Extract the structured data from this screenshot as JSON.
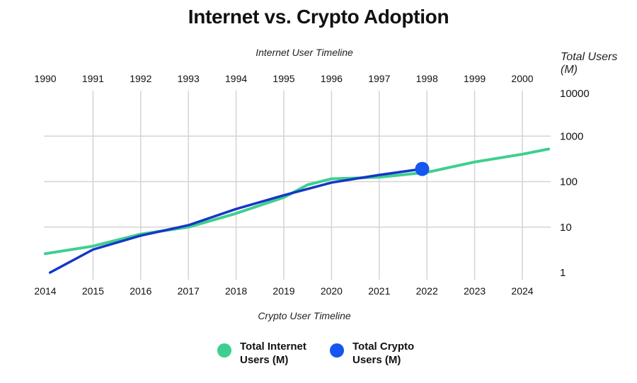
{
  "colors": {
    "internet": "#3ecf8e",
    "crypto": "#1536c8",
    "crypto_marker": "#1556f0",
    "grid": "#d4d4d4",
    "text": "#111111"
  },
  "chart_data": {
    "type": "line",
    "title": "Internet vs. Crypto Adoption",
    "top_axis_label": "Internet User Timeline",
    "bottom_axis_label": "Crypto User Timeline",
    "ylabel": "Total Users (M)",
    "y_scale": "log",
    "ylim": [
      1,
      10000
    ],
    "y_ticks": [
      1,
      10,
      100,
      1000,
      10000
    ],
    "y_tick_labels": [
      "1",
      "10",
      "100",
      "1000",
      "10000"
    ],
    "x_top_ticks": [
      "1990",
      "1991",
      "1992",
      "1993",
      "1994",
      "1995",
      "1996",
      "1997",
      "1998",
      "1999",
      "2000"
    ],
    "x_bottom_ticks": [
      "2014",
      "2015",
      "2016",
      "2017",
      "2018",
      "2019",
      "2020",
      "2021",
      "2022",
      "2023",
      "2024"
    ],
    "grid": true,
    "legend_position": "bottom",
    "series": [
      {
        "name": "Total Internet Users (M)",
        "axis": "top",
        "x": [
          1990.0,
          1991.0,
          1992.0,
          1993.0,
          1994.0,
          1995.0,
          1995.5,
          1996.0,
          1997.0,
          1998.0,
          1999.0,
          2000.0,
          2000.55
        ],
        "y": [
          2.6,
          3.8,
          7,
          10,
          20,
          45,
          85,
          115,
          125,
          160,
          270,
          400,
          520
        ]
      },
      {
        "name": "Total Crypto Users (M)",
        "axis": "bottom",
        "x": [
          2014.1,
          2015.0,
          2016.0,
          2017.0,
          2018.0,
          2019.0,
          2020.0,
          2021.0,
          2021.9
        ],
        "y": [
          1,
          3.2,
          6.5,
          11,
          25,
          50,
          95,
          140,
          190
        ],
        "end_marker": true
      }
    ]
  }
}
